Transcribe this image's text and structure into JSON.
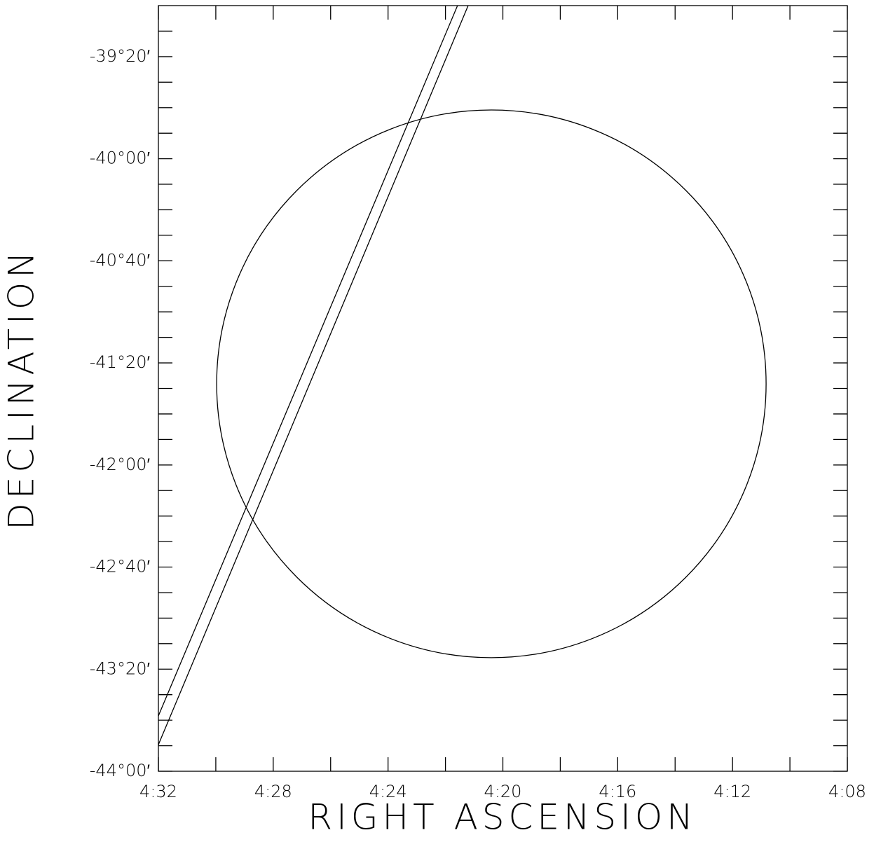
{
  "chart_data": {
    "type": "line",
    "xlabel": "RIGHT ASCENSION",
    "ylabel": "DECLINATION",
    "xlim": [
      272,
      248
    ],
    "ylim": [
      -2640,
      -2340
    ],
    "xticks": [
      {
        "value": 272,
        "label": "4:32"
      },
      {
        "value": 268,
        "label": "4:28"
      },
      {
        "value": 264,
        "label": "4:24"
      },
      {
        "value": 260,
        "label": "4:20"
      },
      {
        "value": 256,
        "label": "4:16"
      },
      {
        "value": 252,
        "label": "4:12"
      },
      {
        "value": 248,
        "label": "4:08"
      }
    ],
    "xticks_minor": [
      270,
      266,
      262,
      258,
      254,
      250
    ],
    "yticks": [
      {
        "value": -2360,
        "label": "-39°20′"
      },
      {
        "value": -2400,
        "label": "-40°00′"
      },
      {
        "value": -2440,
        "label": "-40°40′"
      },
      {
        "value": -2480,
        "label": "-41°20′"
      },
      {
        "value": -2520,
        "label": "-42°00′"
      },
      {
        "value": -2560,
        "label": "-42°40′"
      },
      {
        "value": -2600,
        "label": "-43°20′"
      },
      {
        "value": -2640,
        "label": "-44°00′"
      }
    ],
    "yticks_minor": [
      -2350,
      -2370,
      -2380,
      -2390,
      -2410,
      -2420,
      -2430,
      -2450,
      -2460,
      -2470,
      -2490,
      -2500,
      -2510,
      -2530,
      -2540,
      -2550,
      -2570,
      -2580,
      -2590,
      -2610,
      -2620,
      -2630
    ],
    "color": "#000000",
    "series": [
      {
        "x": [
          272,
          261.58
        ],
        "values": [
          -2618.3,
          -2340
        ]
      },
      {
        "x": [
          272,
          261.21
        ],
        "values": [
          -2629.6,
          -2340
        ]
      }
    ],
    "circles": [
      {
        "x": 260.4,
        "y": -2488.2,
        "rx": 9.57,
        "ry": 107.3
      }
    ]
  }
}
